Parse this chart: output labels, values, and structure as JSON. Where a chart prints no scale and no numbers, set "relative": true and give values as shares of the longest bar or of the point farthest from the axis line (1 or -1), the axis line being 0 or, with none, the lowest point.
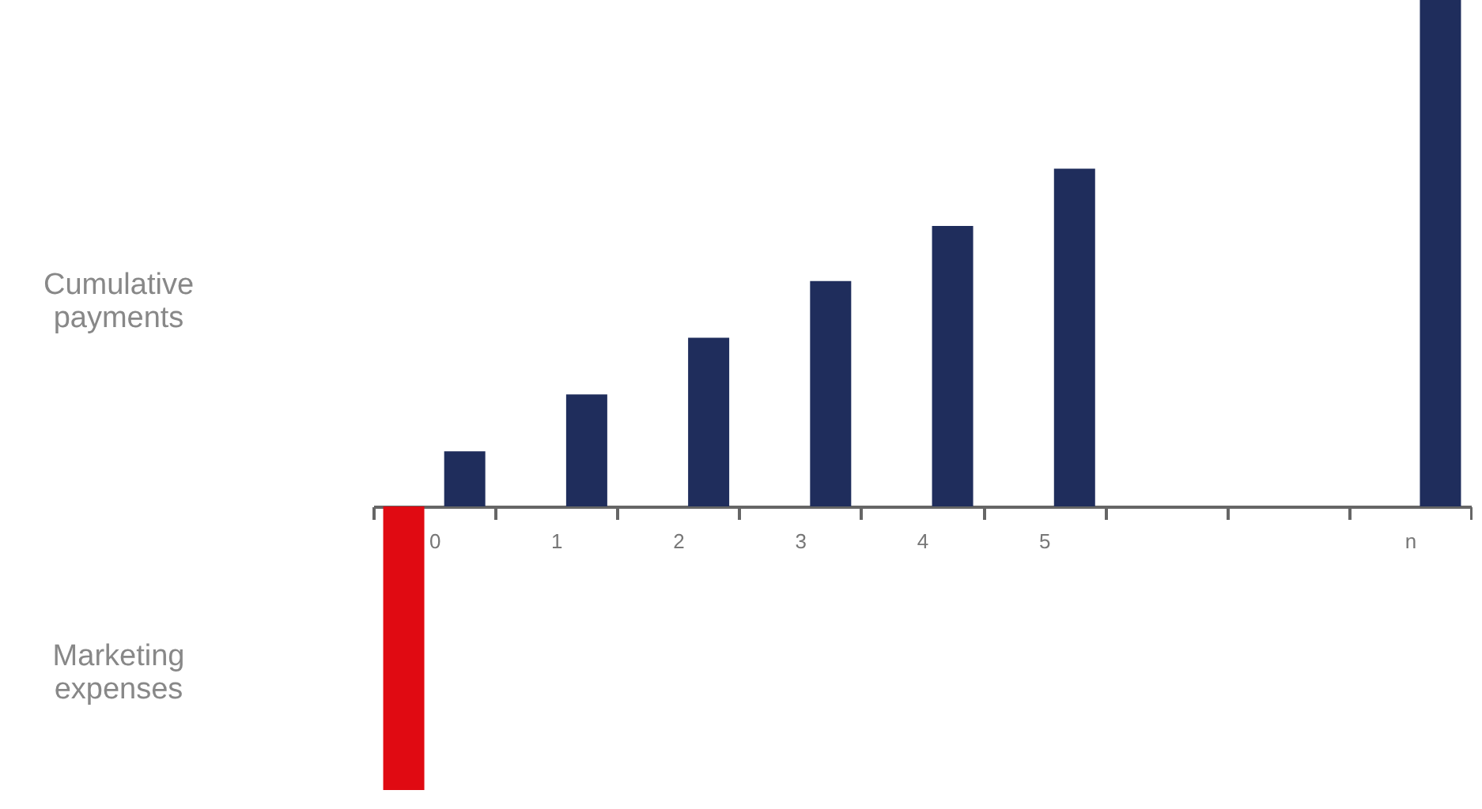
{
  "chart_data": {
    "type": "bar",
    "relative": true,
    "categories": [
      "0",
      "1",
      "2",
      "3",
      "4",
      "5",
      null,
      null,
      "n"
    ],
    "series": [
      {
        "color": "#e00a12",
        "values": [
          -0.56,
          null,
          null,
          null,
          null,
          null,
          null,
          null,
          null
        ]
      },
      {
        "color": "#1f2d5c",
        "values": [
          0.109,
          0.221,
          0.333,
          0.445,
          0.554,
          0.667,
          null,
          null,
          1
        ]
      }
    ],
    "annotations": [
      "Cumulative payments",
      "Marketing expenses"
    ],
    "grid": false,
    "legend": false
  }
}
